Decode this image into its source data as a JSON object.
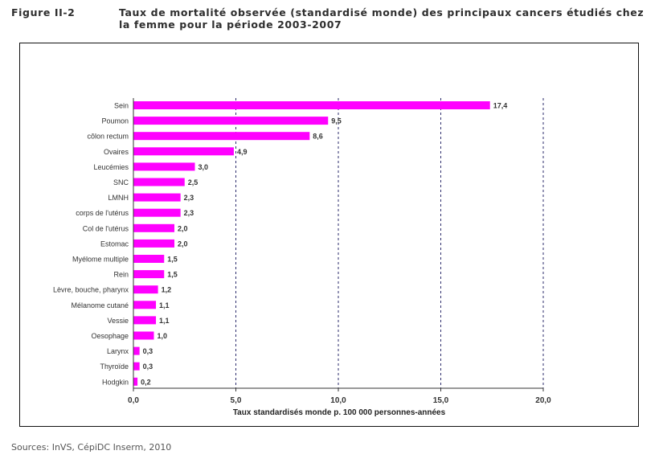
{
  "header": {
    "figure_label": "Figure II-2",
    "title": "Taux de mortalité observée (standardisé monde) des principaux cancers étudiés chez la femme pour la période 2003-2007"
  },
  "footer": {
    "sources": "Sources: InVS, CépiDC Inserm, 2010"
  },
  "chart_data": {
    "type": "bar",
    "orientation": "horizontal",
    "title": "Taux de mortalité observée (standardisé monde) des principaux cancers étudiés chez la femme pour la période 2003-2007",
    "xlabel": "Taux standardisés monde  p. 100 000 personnes-années",
    "ylabel": "",
    "xlim": [
      0,
      20
    ],
    "xticks": [
      0,
      5,
      10,
      15,
      20
    ],
    "xtick_labels": [
      "0,0",
      "5,0",
      "10,0",
      "15,0",
      "20,0"
    ],
    "grid": "vertical dashed",
    "bar_color": "#ff00ff",
    "categories": [
      "Sein",
      "Poumon",
      "côlon rectum",
      "Ovaires",
      "Leucémies",
      "SNC",
      "LMNH",
      "corps de l'utérus",
      "Col de l'utérus",
      "Estomac",
      "Myélome multiple",
      "Rein",
      "Lèvre, bouche, pharynx",
      "Mélanome cutané",
      "Vessie",
      "Oesophage",
      "Larynx",
      "Thyroïde",
      "Hodgkin"
    ],
    "values": [
      17.4,
      9.5,
      8.6,
      4.9,
      3.0,
      2.5,
      2.3,
      2.3,
      2.0,
      2.0,
      1.5,
      1.5,
      1.2,
      1.1,
      1.1,
      1.0,
      0.3,
      0.3,
      0.2
    ],
    "value_labels": [
      "17,4",
      "9,5",
      "8,6",
      "4,9",
      "3,0",
      "2,5",
      "2,3",
      "2,3",
      "2,0",
      "2,0",
      "1,5",
      "1,5",
      "1,2",
      "1,1",
      "1,1",
      "1,0",
      "0,3",
      "0,3",
      "0,2"
    ]
  }
}
